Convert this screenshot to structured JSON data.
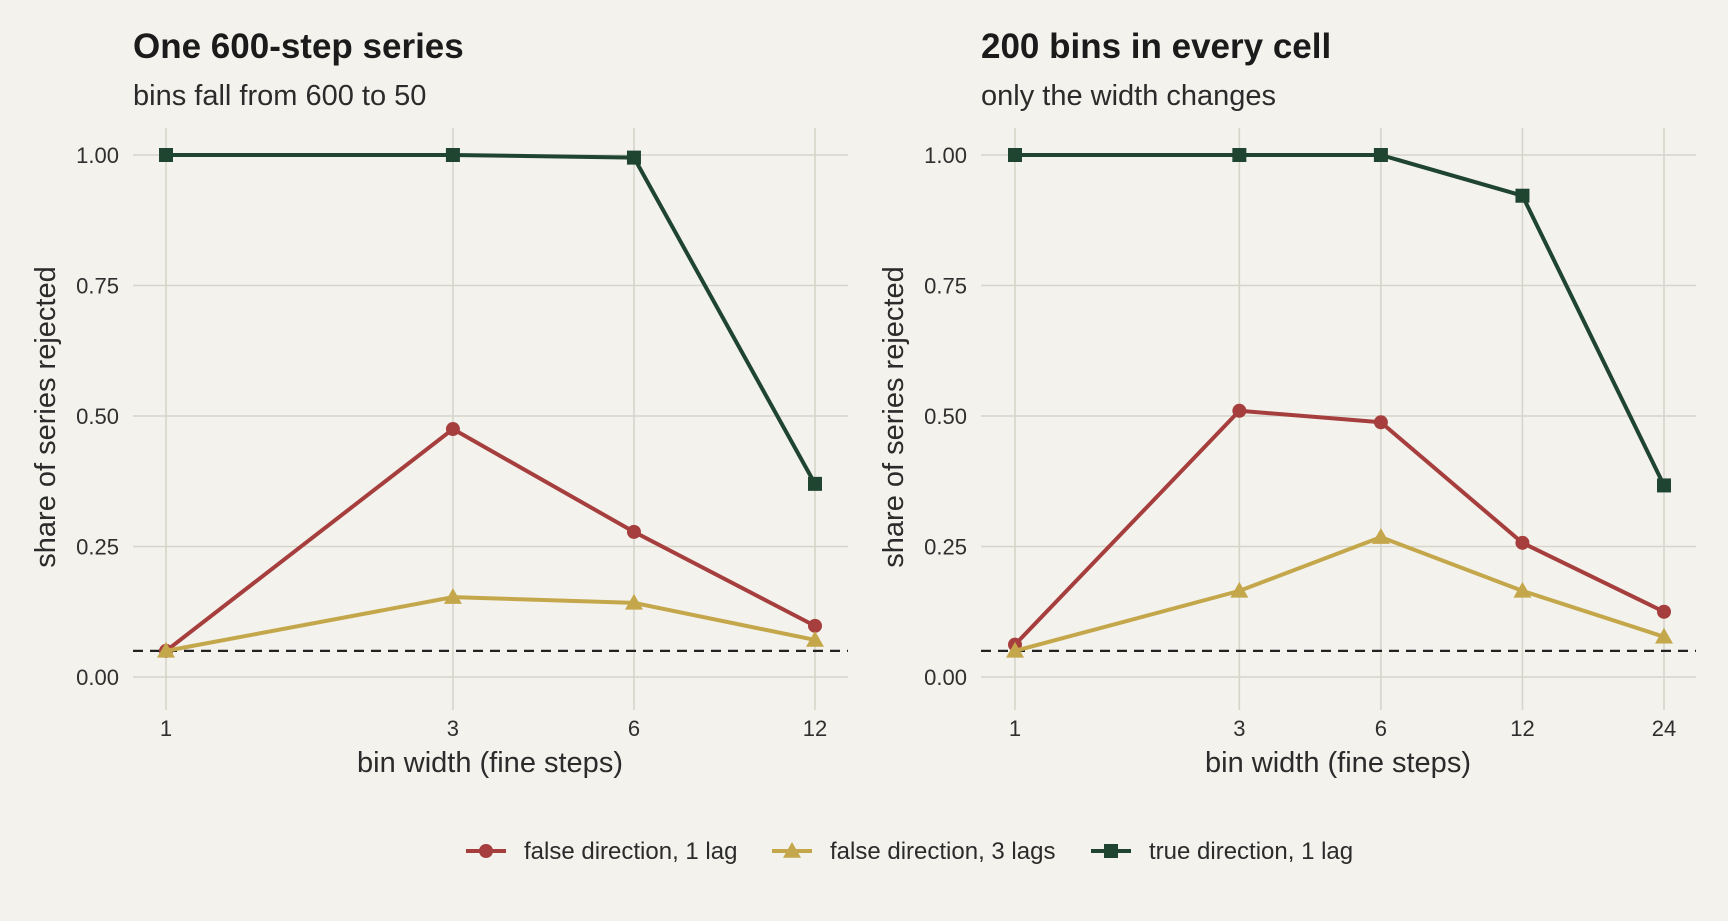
{
  "colors": {
    "background": "#f3f2ec",
    "grid": "#d6d5ca",
    "reference_line": "#222222"
  },
  "legend": {
    "position": "bottom",
    "items": [
      {
        "label": "false direction, 1 lag",
        "color": "#a63e3e",
        "marker": "circle"
      },
      {
        "label": "false direction, 3 lags",
        "color": "#c4a74b",
        "marker": "triangle"
      },
      {
        "label": "true direction, 1 lag",
        "color": "#1f4530",
        "marker": "square"
      }
    ]
  },
  "chart_data": [
    {
      "type": "line",
      "title": "One 600-step series",
      "subtitle": "bins fall from 600 to 50",
      "xlabel": "bin width (fine steps)",
      "ylabel": "share of series rejected",
      "x_scale": "log",
      "x": [
        1,
        3,
        6,
        12
      ],
      "x_tick_labels": [
        "1",
        "3",
        "6",
        "12"
      ],
      "ylim": [
        0,
        1
      ],
      "y_ticks": [
        0,
        0.25,
        0.5,
        0.75,
        1
      ],
      "y_tick_labels": [
        "0.00",
        "0.25",
        "0.50",
        "0.75",
        "1.00"
      ],
      "reference_line_y": 0.05,
      "grid": true,
      "series": [
        {
          "name": "false direction, 1 lag",
          "color": "#a63e3e",
          "marker": "circle",
          "values": [
            0.05,
            0.475,
            0.278,
            0.098
          ]
        },
        {
          "name": "false direction, 3 lags",
          "color": "#c4a74b",
          "marker": "triangle",
          "values": [
            0.05,
            0.153,
            0.142,
            0.071
          ]
        },
        {
          "name": "true direction, 1 lag",
          "color": "#1f4530",
          "marker": "square",
          "values": [
            1.0,
            1.0,
            0.995,
            0.37
          ]
        }
      ]
    },
    {
      "type": "line",
      "title": "200 bins in every cell",
      "subtitle": "only the width changes",
      "xlabel": "bin width (fine steps)",
      "ylabel": "share of series rejected",
      "x_scale": "log",
      "x": [
        1,
        3,
        6,
        12,
        24
      ],
      "x_tick_labels": [
        "1",
        "3",
        "6",
        "12",
        "24"
      ],
      "ylim": [
        0,
        1
      ],
      "y_ticks": [
        0,
        0.25,
        0.5,
        0.75,
        1
      ],
      "y_tick_labels": [
        "0.00",
        "0.25",
        "0.50",
        "0.75",
        "1.00"
      ],
      "reference_line_y": 0.05,
      "grid": true,
      "series": [
        {
          "name": "false direction, 1 lag",
          "color": "#a63e3e",
          "marker": "circle",
          "values": [
            0.062,
            0.51,
            0.488,
            0.257,
            0.125
          ]
        },
        {
          "name": "false direction, 3 lags",
          "color": "#c4a74b",
          "marker": "triangle",
          "values": [
            0.05,
            0.165,
            0.268,
            0.165,
            0.077
          ]
        },
        {
          "name": "true direction, 1 lag",
          "color": "#1f4530",
          "marker": "square",
          "values": [
            1.0,
            1.0,
            1.0,
            0.922,
            0.367
          ]
        }
      ]
    }
  ]
}
